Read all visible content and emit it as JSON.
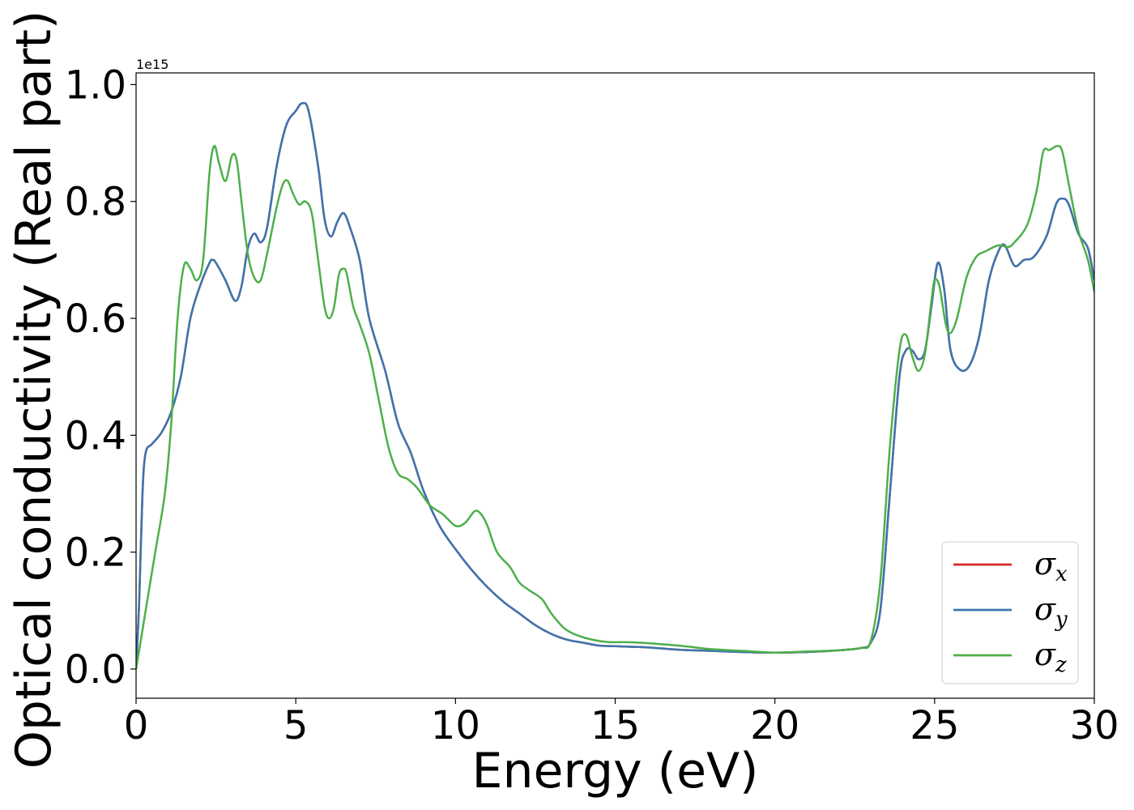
{
  "chart_data": {
    "type": "line",
    "xlabel": "Energy (eV)",
    "ylabel": "Optical conductivity (Real part)",
    "y_offset_text": "1e15",
    "xlim": [
      0,
      30
    ],
    "ylim": [
      -0.05,
      1.02
    ],
    "x_ticks": [
      0,
      5,
      10,
      15,
      20,
      25,
      30
    ],
    "x_tick_labels": [
      "0",
      "5",
      "10",
      "15",
      "20",
      "25",
      "30"
    ],
    "y_ticks": [
      0.0,
      0.2,
      0.4,
      0.6,
      0.8,
      1.0
    ],
    "y_tick_labels": [
      "0.0",
      "0.2",
      "0.4",
      "0.6",
      "0.8",
      "1.0"
    ],
    "grid": false,
    "legend_position": "lower-right",
    "series": [
      {
        "name": "σx",
        "color": "#d62728",
        "points": [
          [
            0,
            0.0
          ],
          [
            0.1,
            0.12
          ],
          [
            0.2,
            0.3
          ],
          [
            0.3,
            0.37
          ],
          [
            0.5,
            0.385
          ],
          [
            0.8,
            0.405
          ],
          [
            1.1,
            0.44
          ],
          [
            1.4,
            0.5
          ],
          [
            1.7,
            0.6
          ],
          [
            2.0,
            0.655
          ],
          [
            2.3,
            0.695
          ],
          [
            2.4,
            0.7
          ],
          [
            2.5,
            0.695
          ],
          [
            2.8,
            0.665
          ],
          [
            3.1,
            0.63
          ],
          [
            3.3,
            0.655
          ],
          [
            3.5,
            0.72
          ],
          [
            3.7,
            0.745
          ],
          [
            3.9,
            0.73
          ],
          [
            4.1,
            0.755
          ],
          [
            4.4,
            0.86
          ],
          [
            4.7,
            0.93
          ],
          [
            5.0,
            0.955
          ],
          [
            5.2,
            0.968
          ],
          [
            5.4,
            0.955
          ],
          [
            5.7,
            0.86
          ],
          [
            5.9,
            0.77
          ],
          [
            6.1,
            0.74
          ],
          [
            6.3,
            0.765
          ],
          [
            6.5,
            0.78
          ],
          [
            6.7,
            0.755
          ],
          [
            7.0,
            0.7
          ],
          [
            7.3,
            0.6
          ],
          [
            7.8,
            0.51
          ],
          [
            8.2,
            0.42
          ],
          [
            8.6,
            0.37
          ],
          [
            9.0,
            0.305
          ],
          [
            9.5,
            0.245
          ],
          [
            10.0,
            0.205
          ],
          [
            10.5,
            0.17
          ],
          [
            11.0,
            0.14
          ],
          [
            11.5,
            0.115
          ],
          [
            12.0,
            0.095
          ],
          [
            12.5,
            0.075
          ],
          [
            13.0,
            0.06
          ],
          [
            13.5,
            0.05
          ],
          [
            14.0,
            0.045
          ],
          [
            14.5,
            0.04
          ],
          [
            15.0,
            0.039
          ],
          [
            15.5,
            0.038
          ],
          [
            16.0,
            0.037
          ],
          [
            17.0,
            0.033
          ],
          [
            18.0,
            0.031
          ],
          [
            19.0,
            0.029
          ],
          [
            20.0,
            0.028
          ],
          [
            21.0,
            0.029
          ],
          [
            22.0,
            0.032
          ],
          [
            22.7,
            0.036
          ],
          [
            23.0,
            0.045
          ],
          [
            23.3,
            0.1
          ],
          [
            23.6,
            0.3
          ],
          [
            23.9,
            0.5
          ],
          [
            24.1,
            0.545
          ],
          [
            24.3,
            0.545
          ],
          [
            24.5,
            0.53
          ],
          [
            24.7,
            0.545
          ],
          [
            24.9,
            0.62
          ],
          [
            25.1,
            0.695
          ],
          [
            25.3,
            0.65
          ],
          [
            25.5,
            0.545
          ],
          [
            25.8,
            0.512
          ],
          [
            26.1,
            0.52
          ],
          [
            26.4,
            0.57
          ],
          [
            26.7,
            0.665
          ],
          [
            27.0,
            0.715
          ],
          [
            27.2,
            0.725
          ],
          [
            27.5,
            0.69
          ],
          [
            27.8,
            0.7
          ],
          [
            28.1,
            0.705
          ],
          [
            28.5,
            0.74
          ],
          [
            28.8,
            0.795
          ],
          [
            29.0,
            0.805
          ],
          [
            29.2,
            0.795
          ],
          [
            29.5,
            0.745
          ],
          [
            29.8,
            0.72
          ],
          [
            30.0,
            0.665
          ]
        ]
      },
      {
        "name": "σy",
        "color": "#3b75af",
        "points": [
          [
            0,
            0.0
          ],
          [
            0.1,
            0.12
          ],
          [
            0.2,
            0.3
          ],
          [
            0.3,
            0.37
          ],
          [
            0.5,
            0.385
          ],
          [
            0.8,
            0.405
          ],
          [
            1.1,
            0.44
          ],
          [
            1.4,
            0.5
          ],
          [
            1.7,
            0.6
          ],
          [
            2.0,
            0.655
          ],
          [
            2.3,
            0.695
          ],
          [
            2.4,
            0.7
          ],
          [
            2.5,
            0.695
          ],
          [
            2.8,
            0.665
          ],
          [
            3.1,
            0.63
          ],
          [
            3.3,
            0.655
          ],
          [
            3.5,
            0.72
          ],
          [
            3.7,
            0.745
          ],
          [
            3.9,
            0.73
          ],
          [
            4.1,
            0.755
          ],
          [
            4.4,
            0.86
          ],
          [
            4.7,
            0.93
          ],
          [
            5.0,
            0.955
          ],
          [
            5.2,
            0.968
          ],
          [
            5.4,
            0.955
          ],
          [
            5.7,
            0.86
          ],
          [
            5.9,
            0.77
          ],
          [
            6.1,
            0.74
          ],
          [
            6.3,
            0.765
          ],
          [
            6.5,
            0.78
          ],
          [
            6.7,
            0.755
          ],
          [
            7.0,
            0.7
          ],
          [
            7.3,
            0.6
          ],
          [
            7.8,
            0.51
          ],
          [
            8.2,
            0.42
          ],
          [
            8.6,
            0.37
          ],
          [
            9.0,
            0.305
          ],
          [
            9.5,
            0.245
          ],
          [
            10.0,
            0.205
          ],
          [
            10.5,
            0.17
          ],
          [
            11.0,
            0.14
          ],
          [
            11.5,
            0.115
          ],
          [
            12.0,
            0.095
          ],
          [
            12.5,
            0.075
          ],
          [
            13.0,
            0.06
          ],
          [
            13.5,
            0.05
          ],
          [
            14.0,
            0.045
          ],
          [
            14.5,
            0.04
          ],
          [
            15.0,
            0.039
          ],
          [
            15.5,
            0.038
          ],
          [
            16.0,
            0.037
          ],
          [
            17.0,
            0.033
          ],
          [
            18.0,
            0.031
          ],
          [
            19.0,
            0.029
          ],
          [
            20.0,
            0.028
          ],
          [
            21.0,
            0.029
          ],
          [
            22.0,
            0.032
          ],
          [
            22.7,
            0.036
          ],
          [
            23.0,
            0.045
          ],
          [
            23.3,
            0.1
          ],
          [
            23.6,
            0.3
          ],
          [
            23.9,
            0.5
          ],
          [
            24.1,
            0.545
          ],
          [
            24.3,
            0.545
          ],
          [
            24.5,
            0.53
          ],
          [
            24.7,
            0.545
          ],
          [
            24.9,
            0.62
          ],
          [
            25.1,
            0.695
          ],
          [
            25.3,
            0.65
          ],
          [
            25.5,
            0.545
          ],
          [
            25.8,
            0.512
          ],
          [
            26.1,
            0.52
          ],
          [
            26.4,
            0.57
          ],
          [
            26.7,
            0.665
          ],
          [
            27.0,
            0.715
          ],
          [
            27.2,
            0.725
          ],
          [
            27.5,
            0.69
          ],
          [
            27.8,
            0.7
          ],
          [
            28.1,
            0.705
          ],
          [
            28.5,
            0.74
          ],
          [
            28.8,
            0.795
          ],
          [
            29.0,
            0.805
          ],
          [
            29.2,
            0.795
          ],
          [
            29.5,
            0.745
          ],
          [
            29.8,
            0.72
          ],
          [
            30.0,
            0.665
          ]
        ]
      },
      {
        "name": "σz",
        "color": "#4daf4a",
        "points": [
          [
            0,
            0.0
          ],
          [
            0.3,
            0.1
          ],
          [
            0.6,
            0.2
          ],
          [
            0.9,
            0.3
          ],
          [
            1.1,
            0.42
          ],
          [
            1.3,
            0.6
          ],
          [
            1.5,
            0.69
          ],
          [
            1.7,
            0.685
          ],
          [
            1.9,
            0.665
          ],
          [
            2.1,
            0.7
          ],
          [
            2.3,
            0.85
          ],
          [
            2.45,
            0.895
          ],
          [
            2.6,
            0.865
          ],
          [
            2.8,
            0.835
          ],
          [
            3.0,
            0.878
          ],
          [
            3.15,
            0.87
          ],
          [
            3.3,
            0.8
          ],
          [
            3.5,
            0.71
          ],
          [
            3.7,
            0.67
          ],
          [
            3.9,
            0.665
          ],
          [
            4.1,
            0.71
          ],
          [
            4.4,
            0.79
          ],
          [
            4.6,
            0.83
          ],
          [
            4.75,
            0.835
          ],
          [
            4.9,
            0.815
          ],
          [
            5.1,
            0.795
          ],
          [
            5.3,
            0.8
          ],
          [
            5.5,
            0.78
          ],
          [
            5.7,
            0.7
          ],
          [
            5.9,
            0.62
          ],
          [
            6.05,
            0.6
          ],
          [
            6.2,
            0.62
          ],
          [
            6.35,
            0.675
          ],
          [
            6.5,
            0.685
          ],
          [
            6.6,
            0.675
          ],
          [
            6.8,
            0.62
          ],
          [
            7.0,
            0.59
          ],
          [
            7.3,
            0.54
          ],
          [
            7.6,
            0.46
          ],
          [
            7.9,
            0.38
          ],
          [
            8.2,
            0.335
          ],
          [
            8.5,
            0.325
          ],
          [
            8.8,
            0.31
          ],
          [
            9.2,
            0.28
          ],
          [
            9.6,
            0.265
          ],
          [
            10.0,
            0.245
          ],
          [
            10.3,
            0.25
          ],
          [
            10.6,
            0.27
          ],
          [
            10.8,
            0.265
          ],
          [
            11.0,
            0.245
          ],
          [
            11.3,
            0.2
          ],
          [
            11.7,
            0.175
          ],
          [
            12.0,
            0.148
          ],
          [
            12.3,
            0.135
          ],
          [
            12.7,
            0.12
          ],
          [
            13.0,
            0.095
          ],
          [
            13.4,
            0.07
          ],
          [
            13.8,
            0.058
          ],
          [
            14.3,
            0.05
          ],
          [
            14.8,
            0.046
          ],
          [
            15.3,
            0.046
          ],
          [
            15.8,
            0.045
          ],
          [
            16.3,
            0.043
          ],
          [
            17.0,
            0.04
          ],
          [
            17.5,
            0.037
          ],
          [
            18.0,
            0.034
          ],
          [
            19.0,
            0.031
          ],
          [
            20.0,
            0.028
          ],
          [
            21.0,
            0.03
          ],
          [
            22.0,
            0.032
          ],
          [
            22.7,
            0.036
          ],
          [
            23.0,
            0.048
          ],
          [
            23.3,
            0.15
          ],
          [
            23.6,
            0.38
          ],
          [
            23.9,
            0.545
          ],
          [
            24.1,
            0.572
          ],
          [
            24.3,
            0.535
          ],
          [
            24.5,
            0.51
          ],
          [
            24.7,
            0.54
          ],
          [
            24.9,
            0.63
          ],
          [
            25.0,
            0.665
          ],
          [
            25.15,
            0.655
          ],
          [
            25.35,
            0.59
          ],
          [
            25.5,
            0.575
          ],
          [
            25.7,
            0.6
          ],
          [
            26.0,
            0.67
          ],
          [
            26.3,
            0.705
          ],
          [
            26.6,
            0.715
          ],
          [
            27.0,
            0.725
          ],
          [
            27.3,
            0.722
          ],
          [
            27.5,
            0.73
          ],
          [
            27.9,
            0.76
          ],
          [
            28.2,
            0.82
          ],
          [
            28.4,
            0.885
          ],
          [
            28.6,
            0.888
          ],
          [
            28.85,
            0.895
          ],
          [
            29.0,
            0.885
          ],
          [
            29.2,
            0.83
          ],
          [
            29.5,
            0.75
          ],
          [
            29.8,
            0.7
          ],
          [
            30.0,
            0.645
          ]
        ]
      }
    ]
  }
}
